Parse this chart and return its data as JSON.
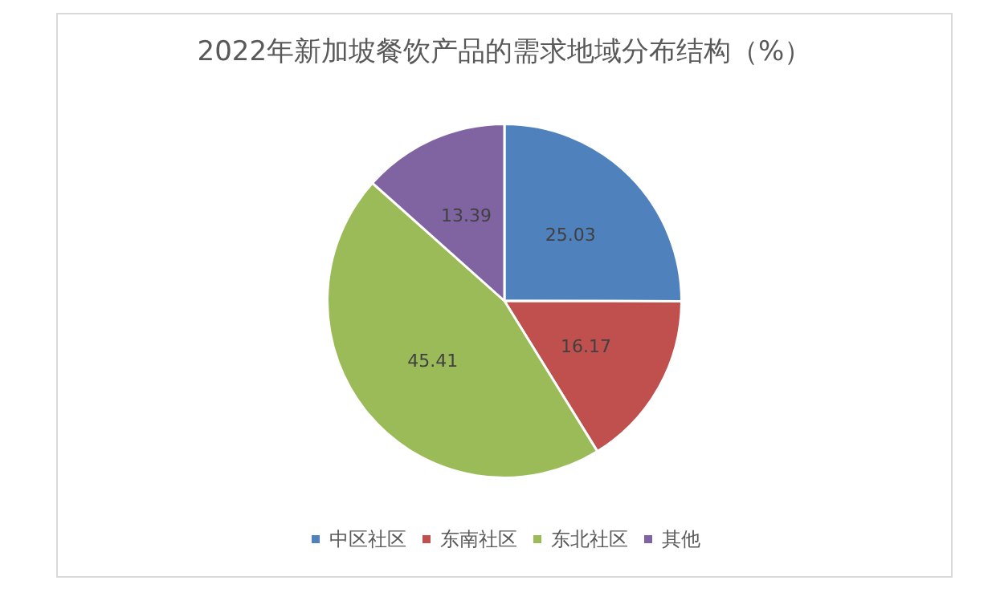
{
  "chart_data": {
    "type": "pie",
    "title": "2022年新加坡餐饮产品的需求地域分布结构（%）",
    "categories": [
      "中区社区",
      "东南社区",
      "东北社区",
      "其他"
    ],
    "values": [
      25.03,
      16.17,
      45.41,
      13.39
    ],
    "colors": [
      "#4f81bd",
      "#c0504d",
      "#9bbb59",
      "#8064a2"
    ],
    "data_labels": true,
    "legend": "bottom"
  }
}
